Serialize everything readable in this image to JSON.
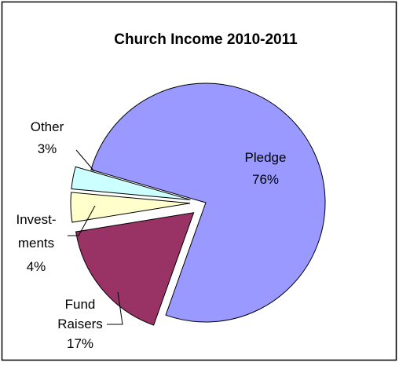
{
  "chart_data": {
    "type": "pie",
    "title": "Church Income 2010-2011",
    "slices": [
      {
        "name": "Pledge",
        "value": 76,
        "label_lines": [
          "Pledge",
          "76%"
        ],
        "color": "#9999FF",
        "exploded": false
      },
      {
        "name": "Fund Raisers",
        "value": 17,
        "label_lines": [
          "Fund",
          "Raisers",
          "17%"
        ],
        "color": "#993366",
        "exploded": true
      },
      {
        "name": "Investments",
        "value": 4,
        "label_lines": [
          "Invest-",
          "ments",
          "4%"
        ],
        "color": "#FFFFCC",
        "exploded": true
      },
      {
        "name": "Other",
        "value": 3,
        "label_lines": [
          "Other",
          "3%"
        ],
        "color": "#CCFFFF",
        "exploded": true
      }
    ],
    "legend": "none"
  }
}
